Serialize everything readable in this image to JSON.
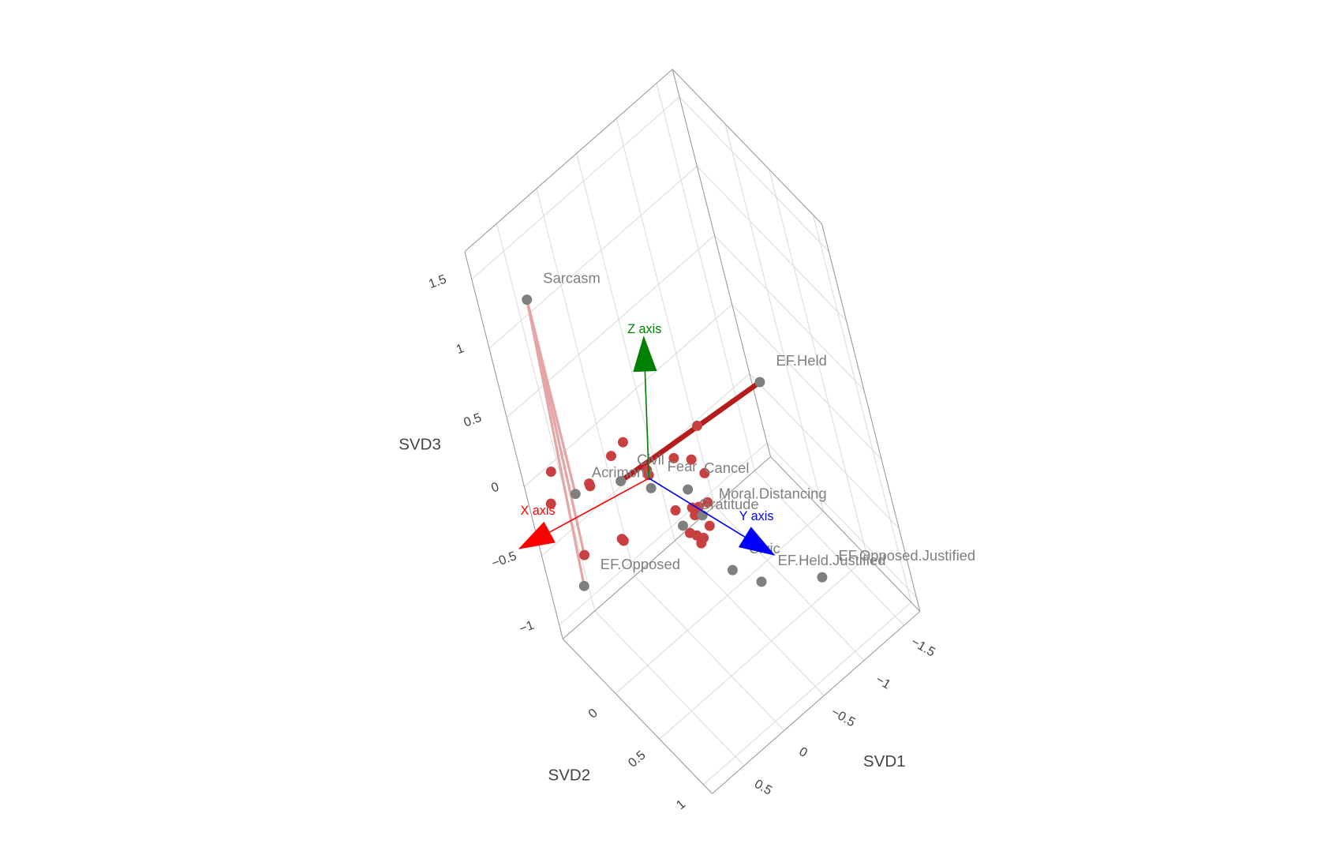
{
  "chart_data": {
    "type": "scatter3d",
    "xlabel": "SVD1",
    "ylabel": "SVD2",
    "zlabel": "SVD3",
    "xlim": [
      -1.7,
      0.9
    ],
    "xticks": [
      {
        "value": -1.5,
        "label": "−1.5"
      },
      {
        "value": -1,
        "label": "−1"
      },
      {
        "value": -0.5,
        "label": "−0.5"
      },
      0,
      0.5
    ],
    "ylim": [
      -0.6,
      1.1
    ],
    "yticks": [
      0,
      0.5,
      1
    ],
    "zlim": [
      -1.1,
      1.7
    ],
    "zticks": [
      {
        "value": -1,
        "label": "−1"
      },
      {
        "value": -0.5,
        "label": "−0.5"
      },
      0,
      0.5,
      1,
      1.5
    ],
    "grid": true,
    "lines": [
      {
        "color": "#b71c1c",
        "width": 6,
        "x": [
          0.21,
          -0.98
        ],
        "y": [
          -0.13,
          0.61
        ],
        "z": [
          0,
          0.6
        ]
      },
      {
        "color": "#e3a5a5",
        "width": 3,
        "x": [
          0.66,
          0.81
        ],
        "y": [
          -0.19,
          -0.2
        ],
        "z": [
          1.5,
          -0.5
        ]
      },
      {
        "color": "#e3a5a5",
        "width": 3,
        "x": [
          0.66,
          0.6
        ],
        "y": [
          -0.19,
          -0.29
        ],
        "z": [
          1.5,
          0
        ]
      },
      {
        "color": "#e3a5a5",
        "width": 3,
        "x": [
          0.66,
          0.94
        ],
        "y": [
          -0.19,
          0.12
        ],
        "z": [
          1.5,
          0
        ]
      }
    ],
    "series": [
      {
        "color": "#c94040",
        "x": [
          -0.06,
          0.11,
          0.62,
          0.83,
          0.44,
          0.45,
          -0.04,
          -0.02,
          -0.3,
          -0.41,
          -0.41,
          -0.67,
          0.03,
          -0.1,
          -0.15,
          -0.07,
          -0.24,
          -0.1,
          0.08,
          0.05,
          0.07,
          0.02,
          0.58,
          0.58,
          0.94
        ],
        "y": [
          -0.35,
          -0.33,
          -0.55,
          -0.36,
          -0.28,
          -0.26,
          -0.06,
          -0.02,
          0.01,
          0.11,
          0.26,
          -0.06,
          0.33,
          0.4,
          0.43,
          0.46,
          0.45,
          0.6,
          0.54,
          0.59,
          0.66,
          0.64,
          0.22,
          0.24,
          0.12
        ],
        "z": [
          0,
          0,
          0,
          0,
          0,
          0,
          0,
          0,
          0,
          0,
          0,
          0,
          0,
          0,
          0,
          0,
          0,
          0,
          0,
          0,
          0,
          0,
          0,
          0,
          0
        ]
      },
      {
        "color": "#7f7f7f",
        "text": [
          "Sarcasm",
          "EF.Held",
          "Acrimony",
          "Civil",
          "Fear",
          "Cancel",
          "Moral.Distancing",
          "Gratitude",
          "Civic",
          "EF.Held.Justified",
          "EF.Opposed.Justified",
          "EF.Opposed"
        ],
        "x": [
          0.66,
          -0.98,
          0.6,
          0.21,
          0.05,
          -0.19,
          -0.12,
          0.08,
          -0.3,
          -0.42,
          -0.86,
          0.81
        ],
        "y": [
          -0.19,
          0.61,
          -0.29,
          -0.13,
          0.07,
          0.27,
          0.5,
          0.46,
          0.48,
          0.7,
          0.99,
          -0.2
        ],
        "z": [
          1.5,
          0.6,
          0,
          0,
          0,
          0,
          0,
          0,
          -0.5,
          -0.5,
          -0.5,
          -0.5
        ]
      }
    ],
    "arrows": [
      {
        "label": "X axis",
        "color": "#ff0000",
        "x": [
          0,
          1.35
        ],
        "y": [
          0,
          -0.26
        ],
        "z": [
          0,
          0
        ]
      },
      {
        "label": "Y axis",
        "color": "#0000ff",
        "x": [
          0,
          -0.35
        ],
        "y": [
          0,
          1.12
        ],
        "z": [
          0,
          0
        ]
      },
      {
        "label": "Z axis",
        "color": "#008000",
        "x": [
          0,
          -0.23
        ],
        "y": [
          0,
          0.13
        ],
        "z": [
          0,
          1
        ]
      }
    ]
  }
}
